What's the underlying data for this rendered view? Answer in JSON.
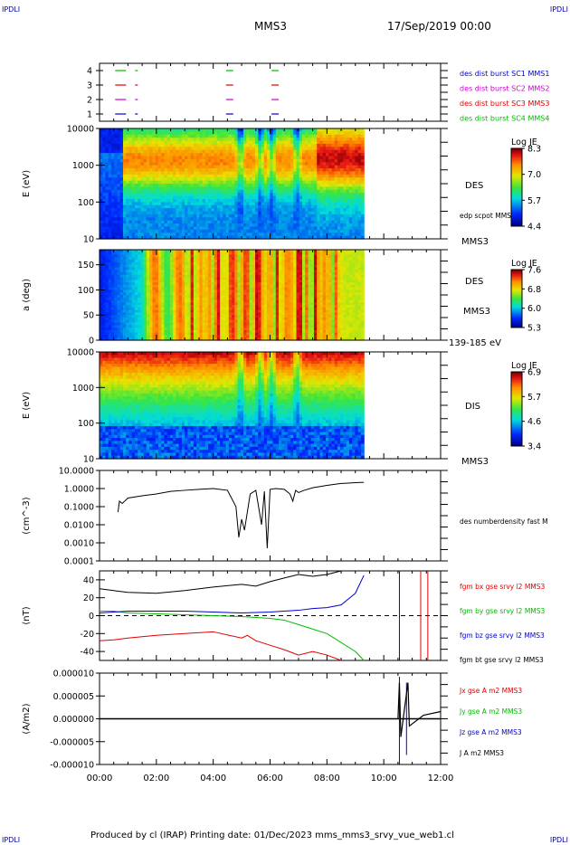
{
  "corners": {
    "tl": "IPDLI",
    "tr": "IPDLI",
    "bl": "IPDLI",
    "br": "IPDLI"
  },
  "header": {
    "spacecraft": "MMS3",
    "date": "17/Sep/2019 00:00"
  },
  "footer": {
    "text": "Produced by cl (IRAP)   Printing date: 01/Dec/2023   mms_mms3_srvy_vue_web1.cl"
  },
  "colors": {
    "c1": "#0000cc",
    "c2": "#cc00cc",
    "c3": "#dd0000",
    "c4": "#00bb00",
    "black": "#000000"
  },
  "chart_data": [
    {
      "type": "line",
      "id": "burst",
      "yticks": [
        "4",
        "3",
        "2",
        "1"
      ],
      "legend": [
        {
          "label": "des dist burst SC1 MMS1",
          "color": "#0000cc"
        },
        {
          "label": "des dist burst SC2 MMS2",
          "color": "#cc00cc"
        },
        {
          "label": "des dist burst SC3 MMS3",
          "color": "#dd0000"
        },
        {
          "label": "des dist burst SC4 MMS4",
          "color": "#00bb00"
        }
      ],
      "intervals_hours": [
        0.55,
        4.45,
        6.05
      ]
    },
    {
      "type": "heatmap",
      "id": "des_energy",
      "ylabel": "E (eV)",
      "yticks": [
        "10000",
        "1000",
        "100",
        "10"
      ],
      "right_label": "DES",
      "overlay_label": "edp scpot MMS3",
      "bottom_label": "MMS3",
      "colorbar": {
        "title": "Log JE",
        "ticks": [
          "8.3",
          "7.0",
          "5.7",
          "4.4"
        ]
      }
    },
    {
      "type": "heatmap",
      "id": "des_pitch",
      "ylabel": "a (deg)",
      "yticks": [
        "150",
        "100",
        "50",
        "0"
      ],
      "right_label": "DES",
      "right_label2": "MMS3",
      "bottom_label": "139-185 eV",
      "colorbar": {
        "title": "Log JE",
        "ticks": [
          "7.6",
          "6.8",
          "6.0",
          "5.3"
        ]
      }
    },
    {
      "type": "heatmap",
      "id": "dis_energy",
      "ylabel": "E (eV)",
      "yticks": [
        "10000",
        "1000",
        "100",
        "10"
      ],
      "right_label": "DIS",
      "bottom_label": "MMS3",
      "colorbar": {
        "title": "Log JE",
        "ticks": [
          "6.9",
          "5.7",
          "4.6",
          "3.4"
        ]
      }
    },
    {
      "type": "line",
      "id": "density",
      "ylabel": "(cm^-3)",
      "yscale": "log",
      "yticks": [
        "10.0000",
        "1.0000",
        "0.1000",
        "0.0100",
        "0.0010",
        "0.0001"
      ],
      "ylim": [
        0.0001,
        10
      ],
      "series": [
        {
          "name": "des numberdensity fast M",
          "color": "#000000",
          "x": [
            0.65,
            0.7,
            0.8,
            1.0,
            1.5,
            2.0,
            2.5,
            3.0,
            3.5,
            4.0,
            4.5,
            4.8,
            4.9,
            5.0,
            5.1,
            5.3,
            5.5,
            5.7,
            5.8,
            5.9,
            6.0,
            6.2,
            6.5,
            6.7,
            6.8,
            6.9,
            7.0,
            7.2,
            7.5,
            8.0,
            8.5,
            9.0,
            9.3
          ],
          "y": [
            0.05,
            0.2,
            0.15,
            0.3,
            0.4,
            0.5,
            0.7,
            0.8,
            0.9,
            1.0,
            0.8,
            0.1,
            0.002,
            0.02,
            0.005,
            0.5,
            0.8,
            0.01,
            0.7,
            0.0005,
            0.9,
            1.0,
            0.9,
            0.5,
            0.2,
            0.8,
            0.6,
            0.8,
            1.1,
            1.5,
            1.9,
            2.1,
            2.2
          ]
        }
      ]
    },
    {
      "type": "line",
      "id": "fgm",
      "ylabel": "(nT)",
      "yticks": [
        "40",
        "20",
        "0",
        "-20",
        "-40"
      ],
      "ylim": [
        -50,
        50
      ],
      "series": [
        {
          "name": "fgm bx gse srvy l2 MMS3",
          "color": "#dd0000",
          "x": [
            0,
            0.5,
            1.0,
            2.0,
            3.0,
            4.0,
            5.0,
            5.2,
            5.5,
            6.0,
            6.5,
            7.0,
            7.5,
            8.0,
            8.5
          ],
          "y": [
            -28,
            -27,
            -25,
            -22,
            -20,
            -18,
            -25,
            -22,
            -28,
            -33,
            -38,
            -44,
            -40,
            -44,
            -50
          ]
        },
        {
          "name": "fgm by gse srvy l2 MMS3",
          "color": "#00bb00",
          "x": [
            0,
            0.5,
            1.0,
            2.0,
            3.0,
            4.0,
            5.0,
            6.0,
            6.5,
            7.0,
            7.5,
            8.0,
            8.5,
            9.0,
            9.3
          ],
          "y": [
            5,
            5,
            3,
            2,
            1,
            0,
            -1,
            -3,
            -5,
            -10,
            -15,
            -20,
            -30,
            -40,
            -50
          ]
        },
        {
          "name": "fgm bz gse srvy l2 MMS3",
          "color": "#0000cc",
          "x": [
            0,
            0.5,
            1.0,
            2.0,
            3.0,
            4.0,
            5.0,
            6.0,
            7.0,
            7.5,
            8.0,
            8.5,
            9.0,
            9.3
          ],
          "y": [
            3,
            4,
            5,
            5,
            5,
            4,
            3,
            4,
            6,
            8,
            9,
            12,
            25,
            45
          ]
        },
        {
          "name": "fgm bt gse srvy l2 MMS3",
          "color": "#000000",
          "x": [
            0,
            0.5,
            1.0,
            2.0,
            3.0,
            4.0,
            5.0,
            5.5,
            6.0,
            6.5,
            7.0,
            7.5,
            8.0,
            8.5
          ],
          "y": [
            30,
            28,
            26,
            25,
            28,
            32,
            35,
            33,
            38,
            42,
            46,
            44,
            46,
            50
          ]
        }
      ]
    },
    {
      "type": "line",
      "id": "current",
      "ylabel": "(A/m2)",
      "yticks": [
        "0.000010",
        "0.000005",
        "0.000000",
        "-0.000005",
        "-0.000010"
      ],
      "ylim": [
        -1e-05,
        1e-05
      ],
      "series": [
        {
          "name": "Jx gse A m2 MMS3",
          "color": "#dd0000"
        },
        {
          "name": "Jy gse A m2 MMS3",
          "color": "#00bb00"
        },
        {
          "name": "Jz gse A m2 MMS3",
          "color": "#0000cc"
        },
        {
          "name": "J A m2 MMS3",
          "color": "#000000"
        }
      ]
    }
  ],
  "time_axis": {
    "ticks": [
      "00:00",
      "02:00",
      "04:00",
      "06:00",
      "08:00",
      "10:00",
      "12:00"
    ],
    "range_hours": [
      0,
      12
    ]
  }
}
